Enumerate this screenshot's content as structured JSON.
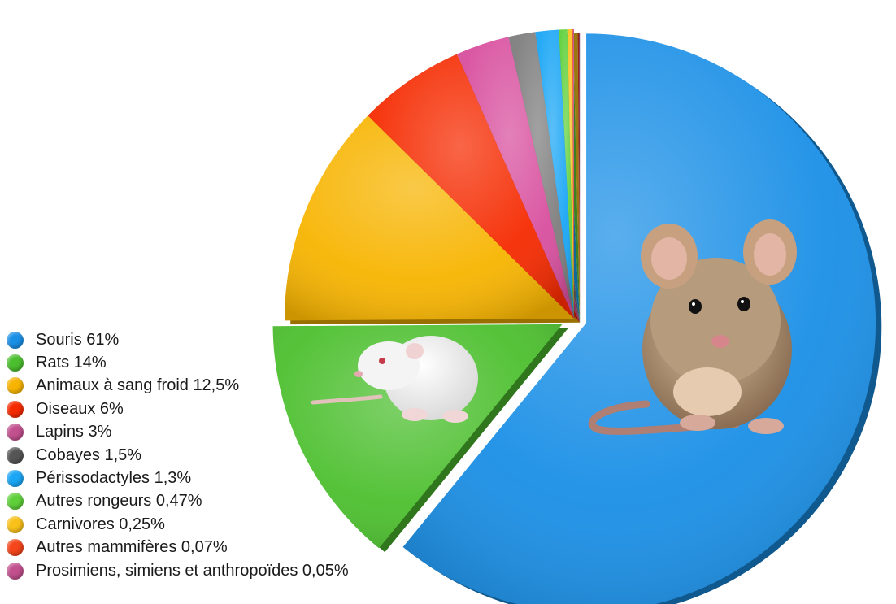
{
  "chart_data": {
    "type": "pie",
    "title": "",
    "legend_position": "left",
    "slices": [
      {
        "label": "Souris 61%",
        "value": 61,
        "color": "#1a8fe6",
        "exploded": true,
        "image": "mouse"
      },
      {
        "label": "Rats 14%",
        "value": 14,
        "color": "#4cbf2e",
        "exploded": true,
        "image": "rat"
      },
      {
        "label": "Animaux à sang froid 12,5%",
        "value": 12.5,
        "color": "#f7b400",
        "exploded": false
      },
      {
        "label": "Oiseaux 6%",
        "value": 6,
        "color": "#f52a00",
        "exploded": false
      },
      {
        "label": "Lapins 3%",
        "value": 3,
        "color": "#d84f9e",
        "exploded": false
      },
      {
        "label": "Cobayes 1,5%",
        "value": 1.5,
        "color": "#7d7d7d",
        "exploded": false
      },
      {
        "label": "Périssodactyles 1,3%",
        "value": 1.3,
        "color": "#1aa6f5",
        "exploded": false
      },
      {
        "label": "Autres rongeurs 0,47%",
        "value": 0.47,
        "color": "#5fd03a",
        "exploded": false
      },
      {
        "label": "Carnivores 0,25%",
        "value": 0.25,
        "color": "#f9c11a",
        "exploded": false
      },
      {
        "label": "Autres mammifères 0,07%",
        "value": 0.07,
        "color": "#f5451a",
        "exploded": false
      },
      {
        "label": "Prosimiens, simiens et anthropoïdes 0,05%",
        "value": 0.05,
        "color": "#c2508e",
        "exploded": false
      }
    ],
    "legend_colors": [
      "#1a8fe6",
      "#4cbf2e",
      "#f7b400",
      "#f52a00",
      "#c2508e",
      "#555555",
      "#1aa6f5",
      "#5fd03a",
      "#f9c11a",
      "#f5451a",
      "#c2508e"
    ]
  }
}
